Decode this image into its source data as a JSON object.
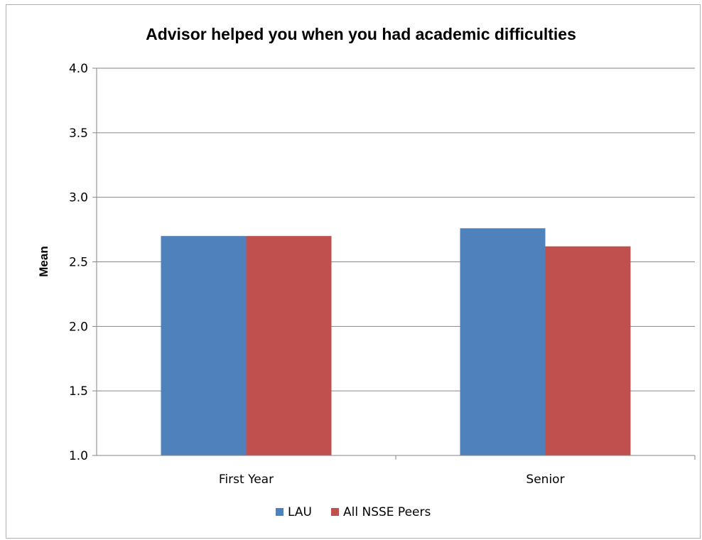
{
  "chart_data": {
    "type": "bar",
    "title": "Advisor helped you when you had academic difficulties",
    "xlabel": "",
    "ylabel": "Mean",
    "categories": [
      "First Year",
      "Senior"
    ],
    "series": [
      {
        "name": "LAU",
        "values": [
          2.7,
          2.76
        ],
        "color": "#4F81BD"
      },
      {
        "name": "All NSSE Peers",
        "values": [
          2.7,
          2.62
        ],
        "color": "#C0504D"
      }
    ],
    "ylim": [
      1.0,
      4.0
    ],
    "yticks": [
      "1.0",
      "1.5",
      "2.0",
      "2.5",
      "3.0",
      "3.5",
      "4.0"
    ],
    "grid": true,
    "legend_position": "bottom"
  }
}
